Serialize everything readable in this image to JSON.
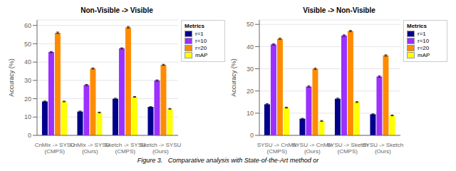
{
  "chart_data": [
    {
      "type": "bar",
      "title": "Non-Visible -> Visible",
      "ylabel": "Accuracy (%)",
      "categories": [
        "CnMix -> SYSU\n(CMPS)",
        "CnMix -> SYSU\n(Ours)",
        "Sketch -> SYSU\n(CMPS)",
        "Sketch -> SYSU\n(Ours)"
      ],
      "series": [
        {
          "name": "r=1",
          "color": "#00008B",
          "values": [
            18.5,
            13.0,
            20.0,
            15.5
          ],
          "errors": [
            0.3,
            0.3,
            0.3,
            0.2
          ]
        },
        {
          "name": "r=10",
          "color": "#9B30FF",
          "values": [
            45.5,
            27.5,
            47.5,
            30.0
          ],
          "errors": [
            0.3,
            0.3,
            0.3,
            0.3
          ]
        },
        {
          "name": "r=20",
          "color": "#FF8C00",
          "values": [
            56.0,
            36.5,
            59.0,
            38.5
          ],
          "errors": [
            0.4,
            0.3,
            0.4,
            0.3
          ]
        },
        {
          "name": "mAP",
          "color": "#FFFF00",
          "values": [
            18.5,
            12.5,
            21.0,
            14.5
          ],
          "errors": [
            0.2,
            0.2,
            0.2,
            0.2
          ]
        }
      ],
      "ylim": [
        0,
        63
      ],
      "yticks": [
        0,
        10,
        20,
        30,
        40,
        50,
        60
      ],
      "grid": true,
      "legend": "upper right",
      "legend_title": "Metrics"
    },
    {
      "type": "bar",
      "title": "Visible -> Non-Visible",
      "ylabel": "Accuracy (%)",
      "categories": [
        "SYSU -> CnMix\n(CMPS)",
        "SYSU -> CnMix\n(Ours)",
        "SYSU -> Sketch\n(CMPS)",
        "SYSU -> Sketch\n(Ours)"
      ],
      "series": [
        {
          "name": "r=1",
          "color": "#00008B",
          "values": [
            14.0,
            7.5,
            16.5,
            9.5
          ],
          "errors": [
            0.3,
            0.2,
            0.3,
            0.2
          ]
        },
        {
          "name": "r=10",
          "color": "#9B30FF",
          "values": [
            41.0,
            22.0,
            45.0,
            26.5
          ],
          "errors": [
            0.3,
            0.3,
            0.3,
            0.3
          ]
        },
        {
          "name": "r=20",
          "color": "#FF8C00",
          "values": [
            43.5,
            30.0,
            47.0,
            36.0
          ],
          "errors": [
            0.3,
            0.3,
            0.3,
            0.3
          ]
        },
        {
          "name": "mAP",
          "color": "#FFFF00",
          "values": [
            12.5,
            6.5,
            15.0,
            9.0
          ],
          "errors": [
            0.2,
            0.2,
            0.2,
            0.2
          ]
        }
      ],
      "ylim": [
        0,
        52
      ],
      "yticks": [
        0,
        10,
        20,
        30,
        40,
        50
      ],
      "grid": true,
      "legend": "upper right",
      "legend_title": "Metrics"
    }
  ],
  "caption": "Figure 3.   Comparative analysis with State-of-the-Art method or"
}
